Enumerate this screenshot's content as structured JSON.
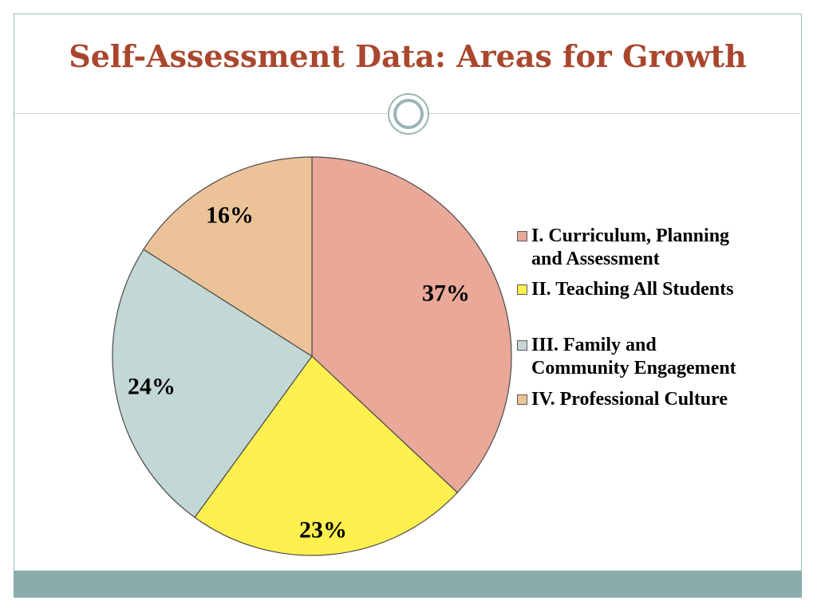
{
  "slide": {
    "title": "Self-Assessment Data: Areas for Growth",
    "colors": {
      "title": "#a9472e",
      "accent": "#8aadac",
      "frame": "#9fb8b8"
    }
  },
  "chart_data": {
    "type": "pie",
    "title": "",
    "categories": [
      "I. Curriculum, Planning and Assessment",
      "II. Teaching All Students",
      "III. Family and Community Engagement",
      "IV. Professional Culture"
    ],
    "values": [
      37,
      23,
      24,
      16
    ],
    "data_labels": [
      "37%",
      "23%",
      "24%",
      "16%"
    ],
    "colors": [
      "#e9a898",
      "#fff04f",
      "#c3d7d5",
      "#ecc399"
    ],
    "legend": {
      "placement": "right",
      "items": [
        {
          "line1": "I. Curriculum, Planning",
          "line2": "and Assessment"
        },
        {
          "line1": "II. Teaching All Students",
          "line2": ""
        },
        {
          "line1": "III. Family and",
          "line2": "Community Engagement"
        },
        {
          "line1": "IV. Professional Culture",
          "line2": ""
        }
      ]
    }
  }
}
